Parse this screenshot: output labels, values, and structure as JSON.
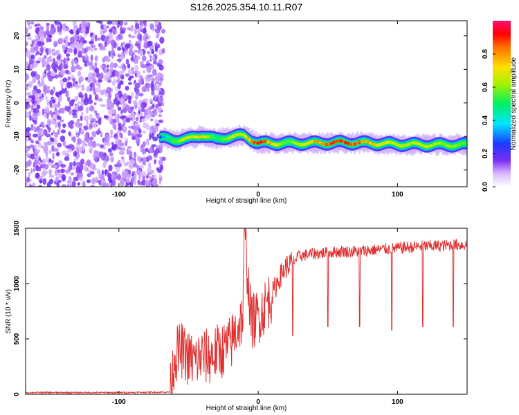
{
  "chart_data": [
    {
      "type": "heatmap",
      "title": "S126.2025.354.10.11.R07",
      "xlabel": "Height of straight line (km)",
      "ylabel": "Frequency (Hz)",
      "xlim": [
        -167,
        150
      ],
      "ylim": [
        -25,
        24.5
      ],
      "xticks": [
        -100,
        0,
        100
      ],
      "yticks": [
        -20,
        -10,
        0,
        10,
        20
      ],
      "noise_region": {
        "x_range": [
          -167,
          -68
        ],
        "y_range": [
          -25,
          24.5
        ]
      },
      "signal_track": {
        "x": [
          -70,
          -60,
          -50,
          -40,
          -30,
          -20,
          -10,
          0,
          20,
          40,
          60,
          80,
          100,
          120,
          150
        ],
        "y": [
          -10.5,
          -11,
          -10.8,
          -9.5,
          -11,
          -10,
          -9.8,
          -12,
          -12,
          -12,
          -11.8,
          -12,
          -12.3,
          -12.5,
          -12.5
        ],
        "peak_amplitude": [
          0.3,
          0.6,
          0.7,
          0.8,
          0.5,
          0.7,
          0.7,
          1.0,
          0.6,
          0.8,
          1.0,
          0.8,
          0.7,
          0.7,
          0.6
        ]
      },
      "colorbar": {
        "label": "Normalized spectral amplitude",
        "range": [
          0.0,
          1.0
        ],
        "ticks": [
          "0.0",
          "0.2",
          "0.4",
          "0.6",
          "0.8"
        ]
      }
    },
    {
      "type": "line",
      "xlabel": "Height of straight line (km)",
      "ylabel": "SNR (10 * v/v)",
      "xlim": [
        -167,
        150
      ],
      "ylim": [
        0,
        1500
      ],
      "xticks": [
        -100,
        0,
        100
      ],
      "yticks": [
        0,
        500,
        1000,
        1500
      ],
      "series": [
        {
          "name": "SNR",
          "color": "#e03030",
          "x": [
            -167,
            -100,
            -63,
            -60,
            -55,
            -50,
            -45,
            -40,
            -35,
            -30,
            -25,
            -20,
            -15,
            -11,
            -10,
            -5,
            0,
            5,
            10,
            15,
            20,
            25,
            30,
            40,
            50,
            60,
            70,
            80,
            90,
            100,
            110,
            120,
            130,
            140,
            150
          ],
          "y": [
            15,
            15,
            20,
            350,
            400,
            320,
            300,
            350,
            330,
            380,
            400,
            450,
            600,
            700,
            1500,
            650,
            700,
            800,
            900,
            1050,
            1150,
            1200,
            1250,
            1270,
            1280,
            1290,
            1290,
            1300,
            1310,
            1320,
            1330,
            1340,
            1340,
            1350,
            1350
          ]
        }
      ],
      "dips": [
        {
          "x": 25,
          "y": 530
        },
        {
          "x": 50,
          "y": 610
        },
        {
          "x": 73,
          "y": 610
        },
        {
          "x": 96,
          "y": 580
        },
        {
          "x": 118,
          "y": 610
        },
        {
          "x": 140,
          "y": 610
        }
      ]
    }
  ],
  "colors": {
    "noise": "#8a30f0",
    "line": "#e03030",
    "axis": "#000000"
  }
}
